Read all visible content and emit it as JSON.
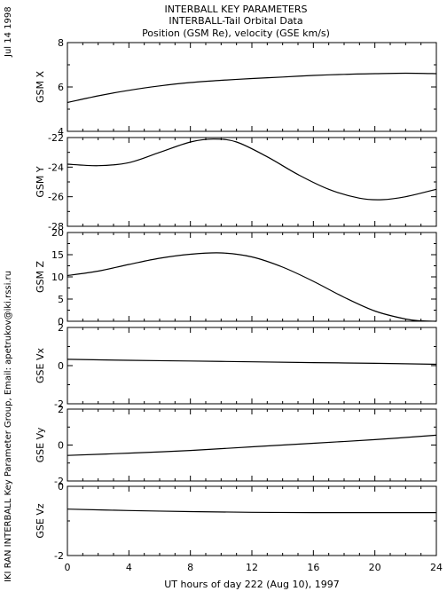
{
  "header": {
    "date_stamp": "Jul 14 1998",
    "title_lines": [
      "INTERBALL KEY PARAMETERS",
      "INTERBALL-Tail Orbital Data",
      "Position (GSM Re), velocity (GSE km/s)"
    ],
    "credit": "IKI RAN INTERBALL Key Parameter Group, Email: apetrukov@iki.rssi.ru"
  },
  "chart_data": {
    "type": "line",
    "xlabel": "UT hours of day 222 (Aug 10), 1997",
    "xlim": [
      0,
      24
    ],
    "xticks": [
      0,
      4,
      8,
      12,
      16,
      20,
      24
    ],
    "panels": [
      {
        "ylabel": "GSM X",
        "ylim": [
          4,
          8
        ],
        "yticks": [
          4,
          6,
          8
        ],
        "x": [
          0,
          2,
          4,
          6,
          8,
          10,
          12,
          14,
          16,
          18,
          20,
          22,
          24
        ],
        "values": [
          5.3,
          5.6,
          5.85,
          6.05,
          6.2,
          6.3,
          6.38,
          6.45,
          6.52,
          6.57,
          6.6,
          6.62,
          6.6
        ]
      },
      {
        "ylabel": "GSM Y",
        "ylim": [
          -28,
          -22
        ],
        "yticks": [
          -28,
          -26,
          -24,
          -22
        ],
        "x": [
          0,
          2,
          4,
          6,
          8,
          9.5,
          11,
          13,
          15,
          17,
          19,
          20.5,
          22,
          24
        ],
        "values": [
          -23.8,
          -23.9,
          -23.7,
          -23.0,
          -22.3,
          -22.1,
          -22.3,
          -23.3,
          -24.5,
          -25.5,
          -26.1,
          -26.2,
          -26.0,
          -25.5
        ]
      },
      {
        "ylabel": "GSM Z",
        "ylim": [
          0,
          20
        ],
        "yticks": [
          0,
          5,
          10,
          15,
          20
        ],
        "x": [
          0,
          2,
          4,
          6,
          8,
          10,
          12,
          14,
          16,
          18,
          20,
          22,
          23,
          24
        ],
        "values": [
          10.3,
          11.3,
          12.8,
          14.2,
          15.1,
          15.4,
          14.5,
          12.2,
          9.0,
          5.4,
          2.3,
          0.5,
          0.1,
          0.0
        ]
      },
      {
        "ylabel": "GSE Vx",
        "ylim": [
          -2,
          2
        ],
        "yticks": [
          -2,
          0,
          2
        ],
        "x": [
          0,
          4,
          8,
          12,
          16,
          20,
          24
        ],
        "values": [
          0.33,
          0.28,
          0.24,
          0.2,
          0.16,
          0.12,
          0.07
        ]
      },
      {
        "ylabel": "GSE Vy",
        "ylim": [
          -2,
          2
        ],
        "yticks": [
          -2,
          0,
          2
        ],
        "x": [
          0,
          4,
          8,
          12,
          16,
          20,
          24
        ],
        "values": [
          -0.58,
          -0.45,
          -0.3,
          -0.1,
          0.1,
          0.3,
          0.55
        ]
      },
      {
        "ylabel": "GSE Vz",
        "ylim": [
          -2,
          0
        ],
        "yticks": [
          -2,
          0
        ],
        "x": [
          0,
          4,
          8,
          12,
          16,
          20,
          24
        ],
        "values": [
          -0.66,
          -0.7,
          -0.73,
          -0.75,
          -0.76,
          -0.76,
          -0.76
        ]
      }
    ]
  }
}
